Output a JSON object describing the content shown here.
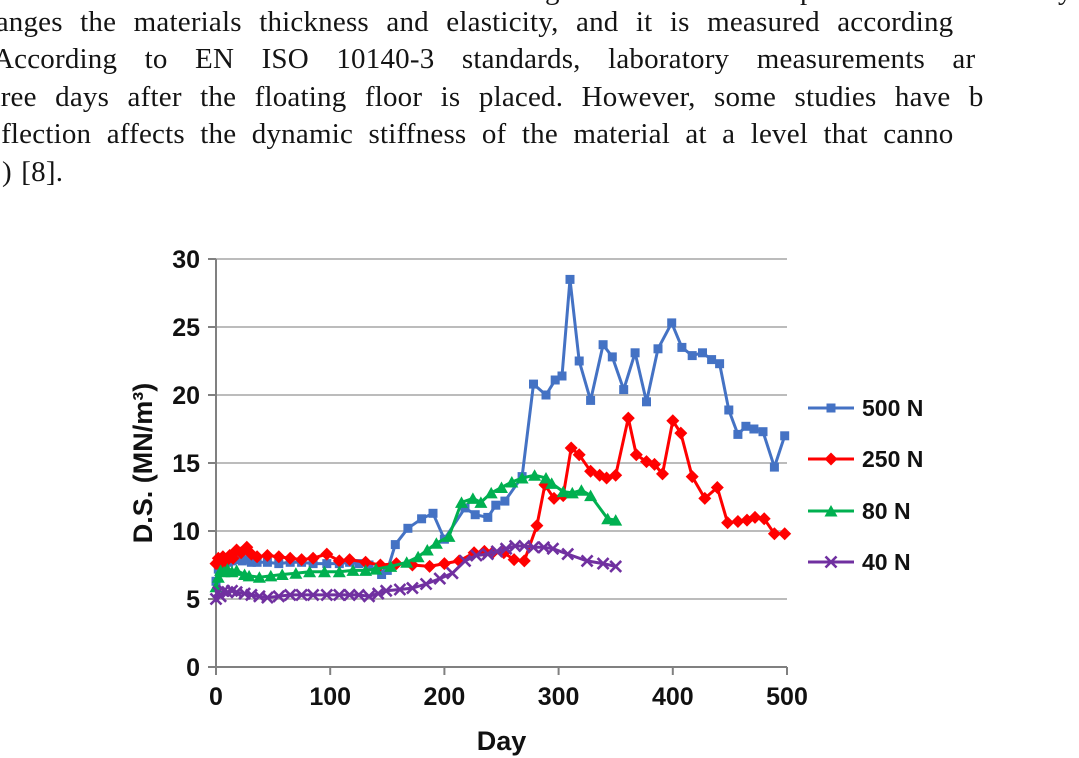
{
  "document": {
    "cut_fragments": [
      "g",
      "p",
      "y"
    ],
    "lines": [
      "hanges the materials thickness and elasticity, and it is measured according",
      "According to EN ISO 10140-3 standards, laboratory measurements ar",
      "hree days after the floating floor is placed. However, some studies have b",
      "eflection affects the dynamic stiffness of the material at a level that canno",
      ") [8]."
    ]
  },
  "chart_data": {
    "type": "line",
    "title": "",
    "xlabel": "Day",
    "ylabel": "D.S. (MN/m³)",
    "xlim": [
      0,
      500
    ],
    "ylim": [
      0,
      30
    ],
    "xticks": [
      0,
      100,
      200,
      300,
      400,
      500
    ],
    "yticks": [
      0,
      5,
      10,
      15,
      20,
      25,
      30
    ],
    "grid": "horizontal",
    "legend_position": "right",
    "axis_color": "#808080",
    "grid_color": "#A6A6A6",
    "series": [
      {
        "name": "500 N",
        "color": "#4472C4",
        "marker": "square",
        "points": [
          [
            0,
            6.3
          ],
          [
            2,
            7.2
          ],
          [
            5,
            7.7
          ],
          [
            8,
            7.9
          ],
          [
            11,
            7.7
          ],
          [
            14,
            7.8
          ],
          [
            18,
            7.9
          ],
          [
            23,
            7.8
          ],
          [
            27,
            7.9
          ],
          [
            31,
            7.7
          ],
          [
            36,
            7.7
          ],
          [
            45,
            7.7
          ],
          [
            55,
            7.6
          ],
          [
            65,
            7.7
          ],
          [
            75,
            7.7
          ],
          [
            85,
            7.6
          ],
          [
            97,
            7.6
          ],
          [
            108,
            7.6
          ],
          [
            117,
            7.7
          ],
          [
            125,
            7.6
          ],
          [
            134,
            7.5
          ],
          [
            145,
            6.8
          ],
          [
            150,
            7.1
          ],
          [
            157,
            9.0
          ],
          [
            168,
            10.2
          ],
          [
            180,
            10.9
          ],
          [
            190,
            11.3
          ],
          [
            200,
            9.4
          ],
          [
            218,
            11.7
          ],
          [
            227,
            11.2
          ],
          [
            238,
            11.0
          ],
          [
            245,
            11.9
          ],
          [
            253,
            12.2
          ],
          [
            268,
            14.0
          ],
          [
            278,
            20.8
          ],
          [
            289,
            20.0
          ],
          [
            297,
            21.1
          ],
          [
            303,
            21.4
          ],
          [
            310,
            28.5
          ],
          [
            318,
            22.5
          ],
          [
            328,
            19.6
          ],
          [
            339,
            23.7
          ],
          [
            347,
            22.8
          ],
          [
            357,
            20.4
          ],
          [
            367,
            23.1
          ],
          [
            377,
            19.5
          ],
          [
            387,
            23.4
          ],
          [
            399,
            25.3
          ],
          [
            408,
            23.5
          ],
          [
            417,
            22.9
          ],
          [
            426,
            23.1
          ],
          [
            434,
            22.6
          ],
          [
            441,
            22.3
          ],
          [
            449,
            18.9
          ],
          [
            457,
            17.1
          ],
          [
            464,
            17.7
          ],
          [
            471,
            17.5
          ],
          [
            479,
            17.3
          ],
          [
            489,
            14.7
          ],
          [
            498,
            17.0
          ]
        ]
      },
      {
        "name": "250 N",
        "color": "#FF0000",
        "marker": "diamond",
        "points": [
          [
            0,
            7.6
          ],
          [
            2,
            8.0
          ],
          [
            4,
            7.4
          ],
          [
            6,
            8.1
          ],
          [
            9,
            7.8
          ],
          [
            12,
            8.2
          ],
          [
            15,
            8.0
          ],
          [
            18,
            8.6
          ],
          [
            22,
            8.4
          ],
          [
            27,
            8.8
          ],
          [
            31,
            8.3
          ],
          [
            36,
            8.1
          ],
          [
            45,
            8.2
          ],
          [
            55,
            8.1
          ],
          [
            65,
            8.0
          ],
          [
            75,
            7.9
          ],
          [
            85,
            8.0
          ],
          [
            97,
            8.3
          ],
          [
            108,
            7.8
          ],
          [
            117,
            7.9
          ],
          [
            131,
            7.7
          ],
          [
            144,
            7.5
          ],
          [
            158,
            7.6
          ],
          [
            172,
            7.5
          ],
          [
            187,
            7.4
          ],
          [
            200,
            7.6
          ],
          [
            213,
            7.8
          ],
          [
            226,
            8.4
          ],
          [
            235,
            8.5
          ],
          [
            242,
            8.4
          ],
          [
            252,
            8.4
          ],
          [
            261,
            7.9
          ],
          [
            270,
            7.8
          ],
          [
            281,
            10.4
          ],
          [
            288,
            13.4
          ],
          [
            296,
            12.4
          ],
          [
            304,
            12.6
          ],
          [
            311,
            16.1
          ],
          [
            318,
            15.6
          ],
          [
            328,
            14.4
          ],
          [
            336,
            14.1
          ],
          [
            342,
            13.9
          ],
          [
            350,
            14.1
          ],
          [
            361,
            18.3
          ],
          [
            368,
            15.6
          ],
          [
            377,
            15.1
          ],
          [
            384,
            14.9
          ],
          [
            391,
            14.2
          ],
          [
            400,
            18.1
          ],
          [
            407,
            17.2
          ],
          [
            417,
            14.0
          ],
          [
            428,
            12.4
          ],
          [
            439,
            13.2
          ],
          [
            448,
            10.6
          ],
          [
            457,
            10.7
          ],
          [
            465,
            10.8
          ],
          [
            472,
            11.0
          ],
          [
            480,
            10.9
          ],
          [
            489,
            9.8
          ],
          [
            498,
            9.8
          ]
        ]
      },
      {
        "name": "80 N",
        "color": "#00B050",
        "marker": "triangle",
        "points": [
          [
            0,
            5.9
          ],
          [
            2,
            6.6
          ],
          [
            4,
            7.1
          ],
          [
            7,
            7.0
          ],
          [
            10,
            7.2
          ],
          [
            14,
            7.0
          ],
          [
            18,
            7.1
          ],
          [
            25,
            6.8
          ],
          [
            29,
            6.7
          ],
          [
            38,
            6.6
          ],
          [
            48,
            6.7
          ],
          [
            58,
            6.8
          ],
          [
            70,
            6.9
          ],
          [
            82,
            7.0
          ],
          [
            95,
            7.0
          ],
          [
            108,
            7.0
          ],
          [
            120,
            7.1
          ],
          [
            131,
            7.1
          ],
          [
            140,
            7.2
          ],
          [
            153,
            7.4
          ],
          [
            167,
            7.7
          ],
          [
            177,
            8.1
          ],
          [
            185,
            8.6
          ],
          [
            193,
            9.1
          ],
          [
            204,
            9.6
          ],
          [
            215,
            12.1
          ],
          [
            225,
            12.4
          ],
          [
            232,
            12.1
          ],
          [
            241,
            12.8
          ],
          [
            250,
            13.2
          ],
          [
            259,
            13.6
          ],
          [
            268,
            13.9
          ],
          [
            279,
            14.1
          ],
          [
            289,
            13.9
          ],
          [
            294,
            13.5
          ],
          [
            304,
            12.9
          ],
          [
            312,
            12.8
          ],
          [
            320,
            13.0
          ],
          [
            328,
            12.6
          ],
          [
            343,
            10.9
          ],
          [
            350,
            10.8
          ]
        ]
      },
      {
        "name": "40 N",
        "color": "#7030A0",
        "marker": "x",
        "points": [
          [
            0,
            5.0
          ],
          [
            2,
            5.5
          ],
          [
            4,
            5.2
          ],
          [
            7,
            5.6
          ],
          [
            10,
            5.5
          ],
          [
            14,
            5.6
          ],
          [
            18,
            5.5
          ],
          [
            25,
            5.4
          ],
          [
            31,
            5.3
          ],
          [
            38,
            5.2
          ],
          [
            45,
            5.1
          ],
          [
            55,
            5.2
          ],
          [
            65,
            5.3
          ],
          [
            75,
            5.3
          ],
          [
            85,
            5.3
          ],
          [
            97,
            5.3
          ],
          [
            108,
            5.3
          ],
          [
            117,
            5.3
          ],
          [
            125,
            5.3
          ],
          [
            134,
            5.2
          ],
          [
            142,
            5.4
          ],
          [
            149,
            5.6
          ],
          [
            161,
            5.7
          ],
          [
            172,
            5.8
          ],
          [
            184,
            6.1
          ],
          [
            196,
            6.5
          ],
          [
            207,
            6.9
          ],
          [
            218,
            7.8
          ],
          [
            228,
            8.2
          ],
          [
            238,
            8.3
          ],
          [
            246,
            8.5
          ],
          [
            254,
            8.7
          ],
          [
            262,
            8.9
          ],
          [
            270,
            8.9
          ],
          [
            278,
            8.8
          ],
          [
            287,
            8.8
          ],
          [
            295,
            8.7
          ],
          [
            308,
            8.3
          ],
          [
            325,
            7.8
          ],
          [
            339,
            7.6
          ],
          [
            350,
            7.4
          ]
        ]
      }
    ]
  }
}
